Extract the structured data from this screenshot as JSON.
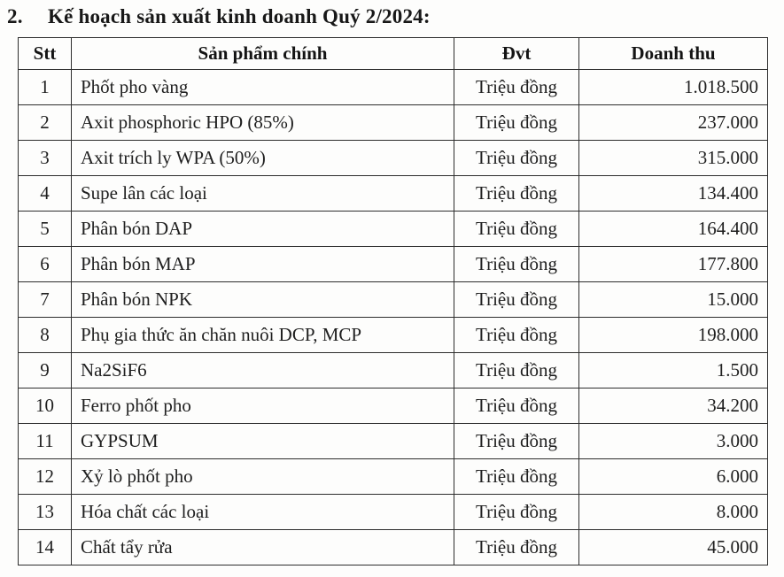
{
  "page": {
    "title_number": "2.",
    "title_text": "Kế hoạch sản xuất kinh doanh Quý 2/2024:"
  },
  "table": {
    "headers": {
      "stt": "Stt",
      "product": "Sản phẩm chính",
      "unit": "Đvt",
      "revenue": "Doanh thu"
    },
    "rows": [
      {
        "stt": "1",
        "product": "Phốt pho vàng",
        "unit": "Triệu đồng",
        "revenue": "1.018.500"
      },
      {
        "stt": "2",
        "product": "Axit phosphoric HPO (85%)",
        "unit": "Triệu đồng",
        "revenue": "237.000"
      },
      {
        "stt": "3",
        "product": "Axit trích ly WPA (50%)",
        "unit": "Triệu đồng",
        "revenue": "315.000"
      },
      {
        "stt": "4",
        "product": "Supe lân các loại",
        "unit": "Triệu đồng",
        "revenue": "134.400"
      },
      {
        "stt": "5",
        "product": "Phân bón DAP",
        "unit": "Triệu đồng",
        "revenue": "164.400"
      },
      {
        "stt": "6",
        "product": "Phân bón MAP",
        "unit": "Triệu đồng",
        "revenue": "177.800"
      },
      {
        "stt": "7",
        "product": "Phân bón NPK",
        "unit": "Triệu đồng",
        "revenue": "15.000"
      },
      {
        "stt": "8",
        "product": "Phụ gia thức ăn chăn nuôi DCP, MCP",
        "unit": "Triệu đồng",
        "revenue": "198.000"
      },
      {
        "stt": "9",
        "product": "Na2SiF6",
        "unit": "Triệu đồng",
        "revenue": "1.500"
      },
      {
        "stt": "10",
        "product": "Ferro phốt pho",
        "unit": "Triệu đồng",
        "revenue": "34.200"
      },
      {
        "stt": "11",
        "product": "GYPSUM",
        "unit": "Triệu đồng",
        "revenue": "3.000"
      },
      {
        "stt": "12",
        "product": "Xỷ lò phốt pho",
        "unit": "Triệu đồng",
        "revenue": "6.000"
      },
      {
        "stt": "13",
        "product": "Hóa chất các loại",
        "unit": "Triệu đồng",
        "revenue": "8.000"
      },
      {
        "stt": "14",
        "product": "Chất tẩy rửa",
        "unit": "Triệu đồng",
        "revenue": "45.000"
      }
    ]
  },
  "colors": {
    "text": "#1c1c1c",
    "border": "#2d2d2d",
    "background": "#fdfdfc"
  }
}
